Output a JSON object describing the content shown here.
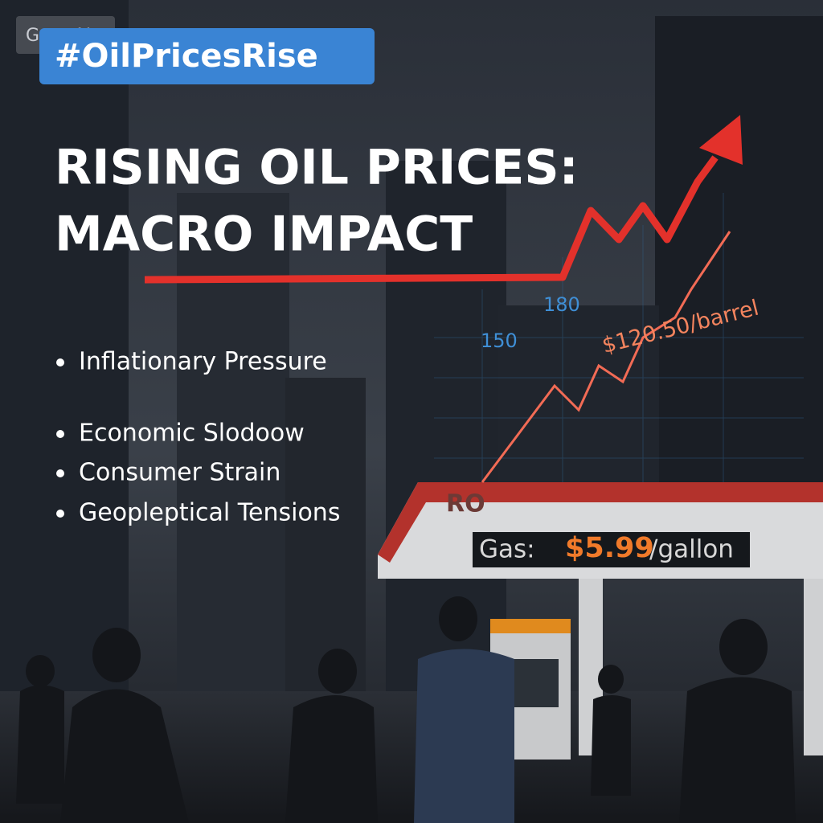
{
  "watermark": "Gate AI",
  "hashtag": "#OilPricesRise",
  "title": {
    "lines": [
      "RISING OIL PRICES:",
      "MACRO IMPACT"
    ]
  },
  "bullets": [
    "Inflationary Pressure",
    "Economic Slodoow",
    "Consumer Strain",
    "Geopleptical Tensions"
  ],
  "chart_overlay": {
    "tick_labels": [
      150,
      180
    ],
    "price_label": "$120.50/barrel"
  },
  "station": {
    "brand": "RO",
    "sign": {
      "label": "Gas:",
      "price": "$5.99",
      "unit": "/gallon"
    }
  }
}
